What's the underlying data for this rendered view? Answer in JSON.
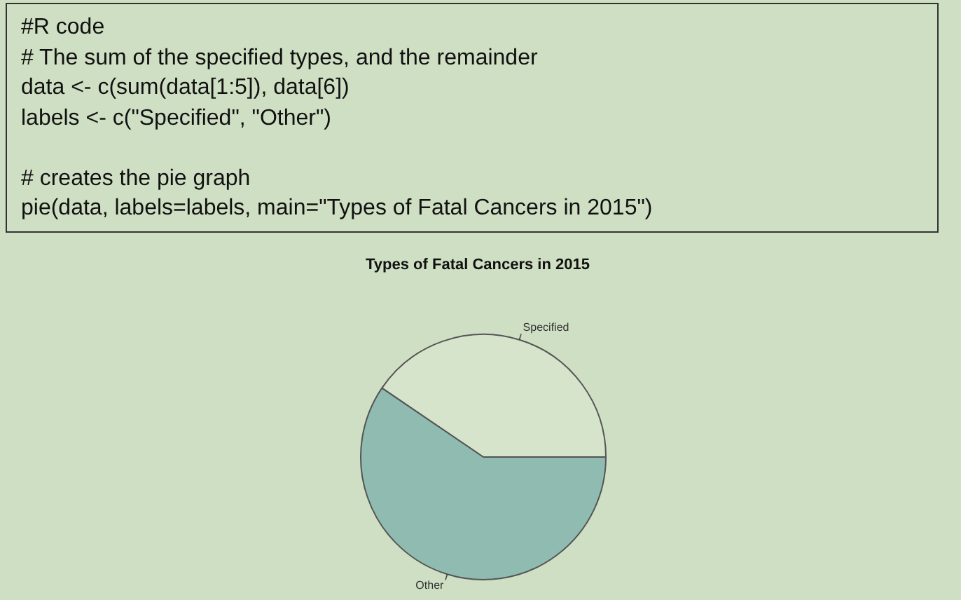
{
  "chart_data": {
    "type": "pie",
    "title": "Types of Fatal Cancers in 2015",
    "categories": [
      "Specified",
      "Other"
    ],
    "values": [
      40.5,
      59.5
    ],
    "colors": [
      "#d6e4cb",
      "#8fbbb0"
    ],
    "annotations": [
      "#R code\n# The sum of the specified types, and the remainder\ndata <- c(sum(data[1:5]), data[6])\nlabels <- c(\"Specified\", \"Other\")\n\n# creates the pie graph\npie(data, labels=labels, main=\"Types of Fatal Cancers in 2015\")"
    ],
    "legend": false
  }
}
